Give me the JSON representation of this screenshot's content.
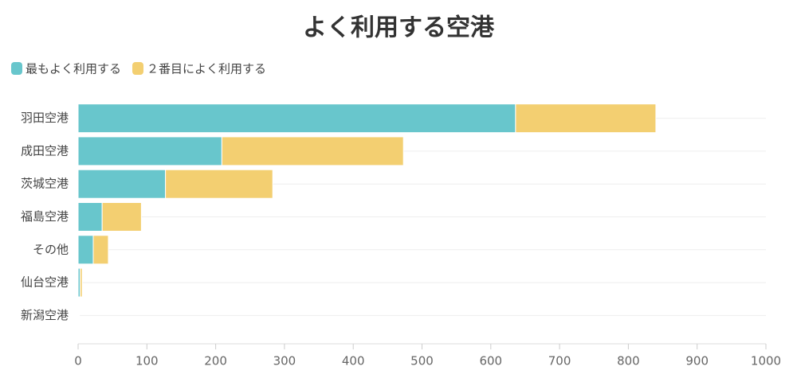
{
  "chart_data": {
    "type": "stacked-barh",
    "title": "よく利用する空港",
    "categories": [
      "羽田空港",
      "成田空港",
      "茨城空港",
      "福島空港",
      "その他",
      "仙台空港",
      "新潟空港"
    ],
    "series": [
      {
        "name": "最もよく利用する",
        "color": "#68c6cc",
        "values": [
          636,
          209,
          127,
          35,
          22,
          3,
          1
        ]
      },
      {
        "name": "２番目によく利用する",
        "color": "#f3cf71",
        "values": [
          204,
          264,
          156,
          57,
          22,
          3,
          1
        ]
      }
    ],
    "xlim": [
      0,
      1000
    ],
    "xticks": [
      0,
      100,
      200,
      300,
      400,
      500,
      600,
      700,
      800,
      900,
      1000
    ],
    "legend": "top-left"
  }
}
